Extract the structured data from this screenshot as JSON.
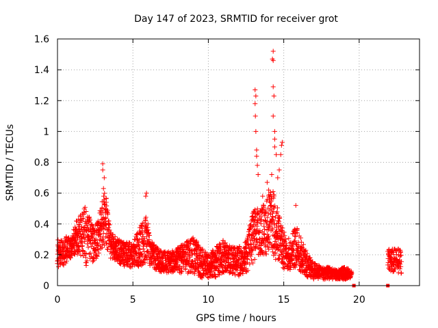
{
  "chart_data": {
    "type": "scatter",
    "title": "Day 147 of 2023, SRMTID for receiver grot",
    "xlabel": "GPS time / hours",
    "ylabel": "SRMTID / TECUs",
    "xlim": [
      0,
      24
    ],
    "ylim": [
      0,
      1.6
    ],
    "x_ticks": [
      0,
      5,
      10,
      15,
      20
    ],
    "y_ticks": [
      0,
      0.2,
      0.4,
      0.6,
      0.8,
      1,
      1.2,
      1.4,
      1.6
    ],
    "x_tick_labels": [
      "0",
      "5",
      "10",
      "15",
      "20"
    ],
    "y_tick_labels": [
      "0",
      "0.2",
      "0.4",
      "0.6",
      "0.8",
      "1",
      "1.2",
      "1.4",
      "1.6"
    ],
    "grid": true,
    "marker": "plus",
    "color": "#ff0000",
    "series": [
      {
        "name": "SRMTID",
        "envelope": [
          [
            0.0,
            0.1,
            0.3
          ],
          [
            0.3,
            0.12,
            0.3
          ],
          [
            0.6,
            0.15,
            0.32
          ],
          [
            0.9,
            0.18,
            0.3
          ],
          [
            1.2,
            0.2,
            0.42
          ],
          [
            1.5,
            0.2,
            0.45
          ],
          [
            1.8,
            0.12,
            0.52
          ],
          [
            2.1,
            0.15,
            0.45
          ],
          [
            2.4,
            0.15,
            0.38
          ],
          [
            2.7,
            0.18,
            0.42
          ],
          [
            3.0,
            0.25,
            0.6
          ],
          [
            3.2,
            0.25,
            0.6
          ],
          [
            3.5,
            0.18,
            0.35
          ],
          [
            4.0,
            0.15,
            0.3
          ],
          [
            4.5,
            0.12,
            0.28
          ],
          [
            5.0,
            0.12,
            0.28
          ],
          [
            5.5,
            0.12,
            0.4
          ],
          [
            5.9,
            0.15,
            0.45
          ],
          [
            6.2,
            0.1,
            0.3
          ],
          [
            6.6,
            0.1,
            0.25
          ],
          [
            7.0,
            0.08,
            0.22
          ],
          [
            7.5,
            0.08,
            0.22
          ],
          [
            8.0,
            0.08,
            0.25
          ],
          [
            8.5,
            0.08,
            0.28
          ],
          [
            9.0,
            0.08,
            0.32
          ],
          [
            9.5,
            0.05,
            0.25
          ],
          [
            10.0,
            0.05,
            0.2
          ],
          [
            10.5,
            0.05,
            0.25
          ],
          [
            11.0,
            0.08,
            0.3
          ],
          [
            11.5,
            0.08,
            0.25
          ],
          [
            12.0,
            0.06,
            0.25
          ],
          [
            12.5,
            0.08,
            0.3
          ],
          [
            13.0,
            0.15,
            0.5
          ],
          [
            13.4,
            0.2,
            0.5
          ],
          [
            13.8,
            0.2,
            0.55
          ],
          [
            14.2,
            0.2,
            0.65
          ],
          [
            14.6,
            0.15,
            0.5
          ],
          [
            15.0,
            0.1,
            0.35
          ],
          [
            15.4,
            0.1,
            0.3
          ],
          [
            15.8,
            0.12,
            0.4
          ],
          [
            16.2,
            0.08,
            0.3
          ],
          [
            16.6,
            0.05,
            0.2
          ],
          [
            17.0,
            0.04,
            0.15
          ],
          [
            17.5,
            0.04,
            0.12
          ],
          [
            18.0,
            0.04,
            0.12
          ],
          [
            18.5,
            0.04,
            0.1
          ],
          [
            19.0,
            0.04,
            0.12
          ],
          [
            19.5,
            0.05,
            0.1
          ]
        ],
        "gaps": [
          [
            19.6,
            21.9
          ]
        ],
        "late_block": {
          "x_range": [
            21.9,
            22.8
          ],
          "y_range": [
            0.08,
            0.24
          ]
        },
        "spikes": [
          [
            3.0,
            0.79
          ],
          [
            3.0,
            0.75
          ],
          [
            3.1,
            0.7
          ],
          [
            3.05,
            0.63
          ],
          [
            5.9,
            0.6
          ],
          [
            5.85,
            0.58
          ],
          [
            13.1,
            1.27
          ],
          [
            13.15,
            1.23
          ],
          [
            13.1,
            1.18
          ],
          [
            13.12,
            1.1
          ],
          [
            13.15,
            1.0
          ],
          [
            13.2,
            0.88
          ],
          [
            13.2,
            0.84
          ],
          [
            13.25,
            0.78
          ],
          [
            13.3,
            0.72
          ],
          [
            14.3,
            1.52
          ],
          [
            14.25,
            1.47
          ],
          [
            14.3,
            1.46
          ],
          [
            14.3,
            1.29
          ],
          [
            14.35,
            1.23
          ],
          [
            14.3,
            1.1
          ],
          [
            14.4,
            1.0
          ],
          [
            14.4,
            0.95
          ],
          [
            14.4,
            0.9
          ],
          [
            14.5,
            0.85
          ],
          [
            14.9,
            0.93
          ],
          [
            14.85,
            0.91
          ],
          [
            14.8,
            0.85
          ],
          [
            14.7,
            0.75
          ],
          [
            14.6,
            0.7
          ],
          [
            14.2,
            0.72
          ],
          [
            13.9,
            0.67
          ],
          [
            14.0,
            0.62
          ],
          [
            13.6,
            0.58
          ],
          [
            15.8,
            0.52
          ]
        ],
        "low_markers": [
          [
            19.65,
            0.0
          ],
          [
            21.9,
            0.0
          ]
        ]
      }
    ]
  }
}
